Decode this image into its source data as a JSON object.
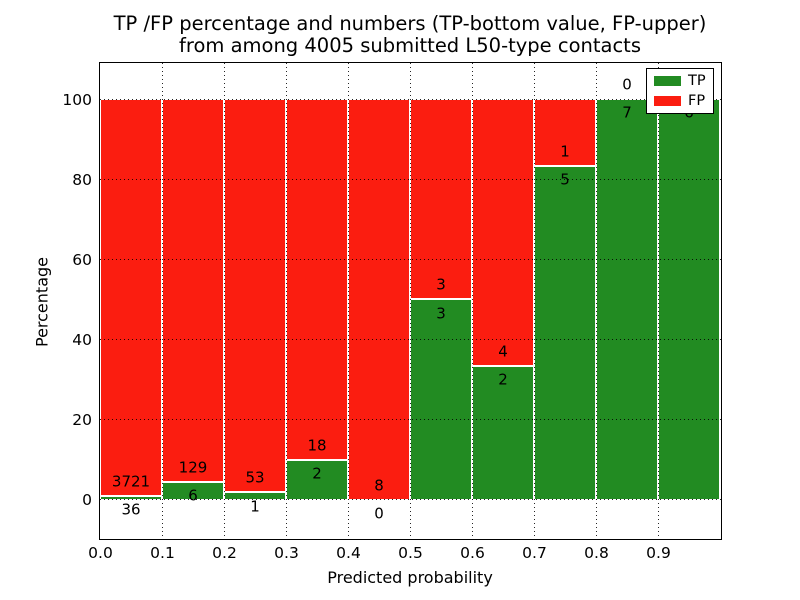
{
  "figure": {
    "background": "#ffffff",
    "title_line1": "TP /FP percentage and numbers (TP-bottom value, FP-upper)",
    "title_line2": "from among 4005 submitted L50-type contacts"
  },
  "chart_data": {
    "type": "bar",
    "stacked": true,
    "orientation": "vertical",
    "title": "TP /FP percentage and numbers (TP-bottom value, FP-upper) from among 4005 submitted L50-type contacts",
    "xlabel": "Predicted probability",
    "ylabel": "Percentage",
    "total_contacts": 4005,
    "xlim": [
      0.0,
      1.0
    ],
    "ylim": [
      -9.5,
      109.0
    ],
    "grid": true,
    "bar_bin_width": 0.1,
    "bin_starts": [
      0.0,
      0.1,
      0.2,
      0.3,
      0.4,
      0.5,
      0.6,
      0.7,
      0.8,
      0.9
    ],
    "xticks": [
      {
        "value": 0.0,
        "label": "0.0"
      },
      {
        "value": 0.1,
        "label": "0.1"
      },
      {
        "value": 0.2,
        "label": "0.2"
      },
      {
        "value": 0.3,
        "label": "0.3"
      },
      {
        "value": 0.4,
        "label": "0.4"
      },
      {
        "value": 0.5,
        "label": "0.5"
      },
      {
        "value": 0.6,
        "label": "0.6"
      },
      {
        "value": 0.7,
        "label": "0.7"
      },
      {
        "value": 0.8,
        "label": "0.8"
      },
      {
        "value": 0.9,
        "label": "0.9"
      }
    ],
    "yticks": [
      {
        "value": 0,
        "label": "0"
      },
      {
        "value": 20,
        "label": "20"
      },
      {
        "value": 40,
        "label": "40"
      },
      {
        "value": 60,
        "label": "60"
      },
      {
        "value": 80,
        "label": "80"
      },
      {
        "value": 100,
        "label": "100"
      }
    ],
    "series": [
      {
        "name": "TP",
        "color": "#228b22",
        "counts": [
          36,
          6,
          1,
          2,
          0,
          3,
          2,
          5,
          7,
          6
        ]
      },
      {
        "name": "FP",
        "color": "#fb1d10",
        "counts": [
          3721,
          129,
          53,
          18,
          8,
          3,
          4,
          1,
          0,
          0
        ]
      }
    ],
    "tp_percent": [
      0.96,
      4.44,
      1.85,
      10.0,
      0.0,
      50.0,
      33.33,
      83.33,
      100.0,
      100.0
    ],
    "legend": {
      "position": "upper right",
      "entries": [
        {
          "label": "TP",
          "color": "#228b22"
        },
        {
          "label": "FP",
          "color": "#fb1d10"
        }
      ]
    }
  }
}
